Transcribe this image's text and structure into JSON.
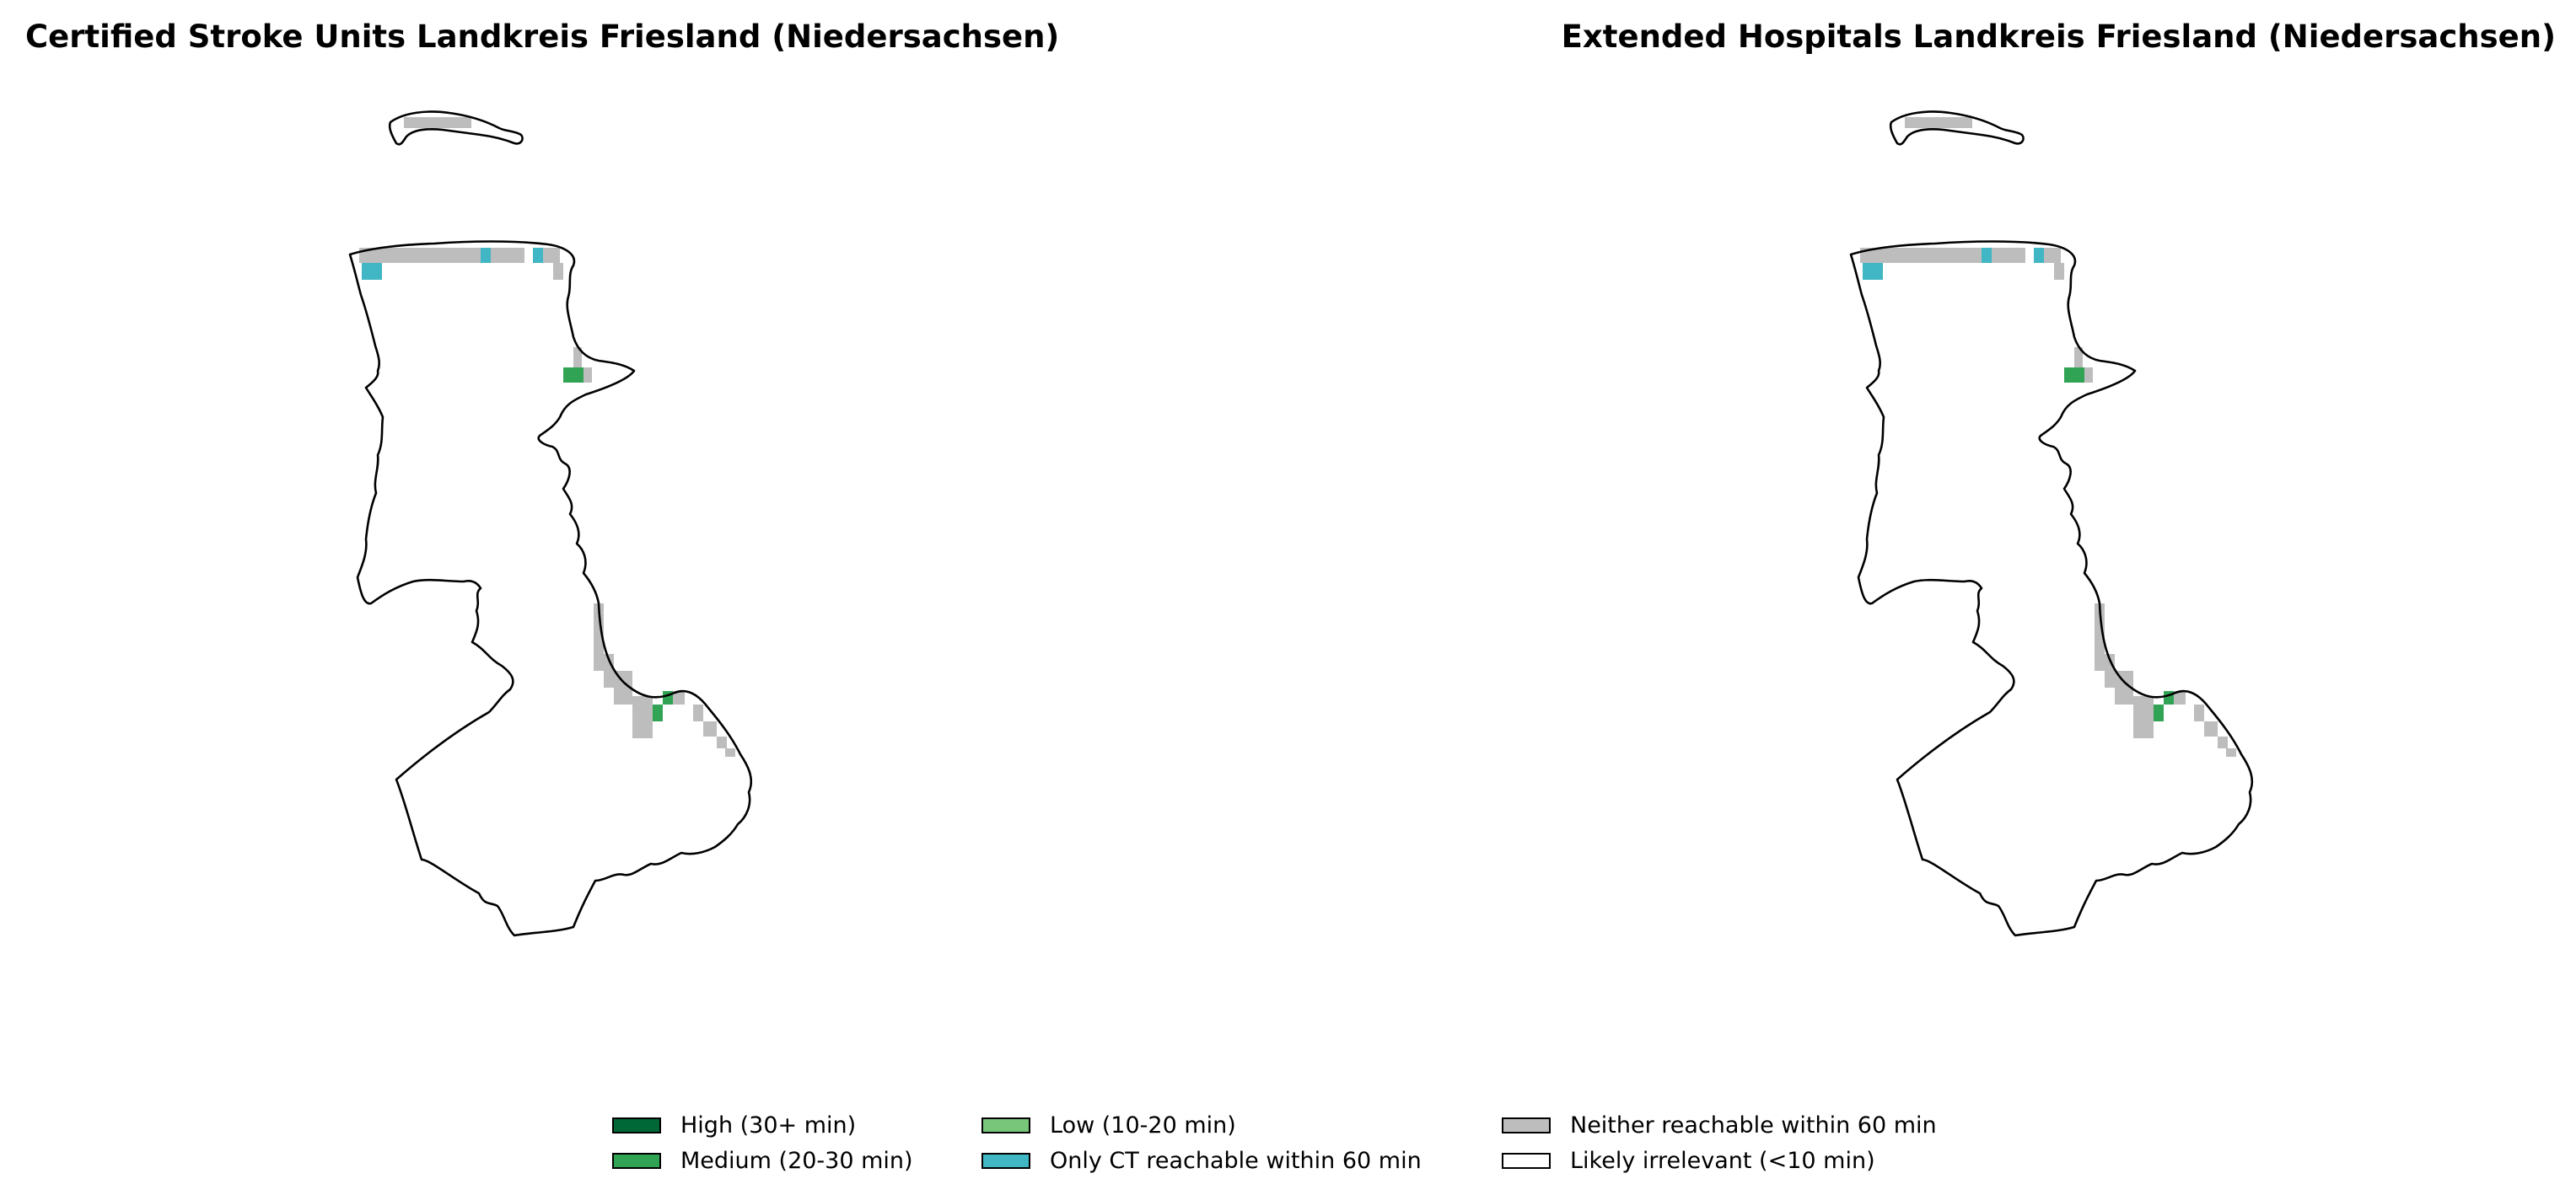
{
  "panels": [
    {
      "title": "Certified Stroke Units Landkreis Friesland (Niedersachsen)"
    },
    {
      "title": "Extended Hospitals Landkreis Friesland (Niedersachsen)"
    }
  ],
  "legend": {
    "items": [
      {
        "label": "High (30+ min)",
        "color": "#006837"
      },
      {
        "label": "Medium (20-30 min)",
        "color": "#31a354"
      },
      {
        "label": "Low (10-20 min)",
        "color": "#78c679"
      },
      {
        "label": "Only CT reachable within 60 min",
        "color": "#41b6c4"
      },
      {
        "label": "Neither reachable within 60 min",
        "color": "#bdbdbd"
      },
      {
        "label": "Likely irrelevant (<10 min)",
        "color": "#ffffff"
      }
    ]
  }
}
